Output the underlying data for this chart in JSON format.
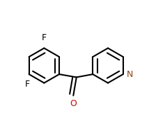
{
  "background": "#ffffff",
  "bond_color": "#000000",
  "bond_width": 1.5,
  "N_color": "#8B4513",
  "O_color": "#cc0000",
  "F_color": "#000000",
  "font_size": 9,
  "figsize": [
    2.14,
    1.76
  ],
  "dpi": 100,
  "bl": 0.115,
  "lrc": [
    0.3,
    0.52
  ],
  "rrc": [
    0.72,
    0.52
  ]
}
